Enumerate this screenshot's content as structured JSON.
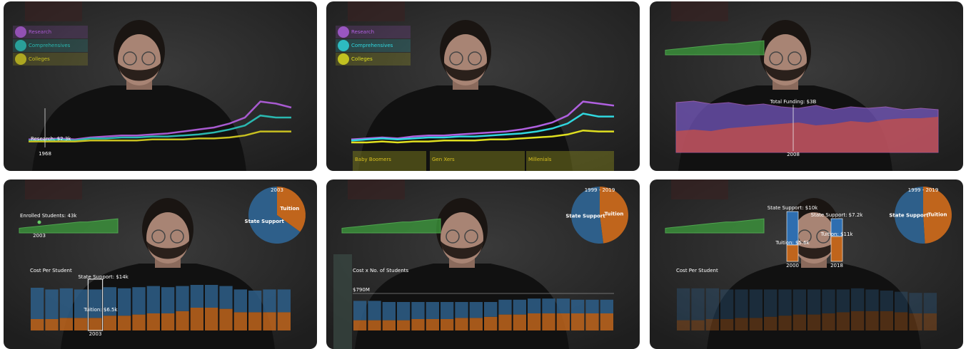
{
  "panels": [
    {
      "legend": [
        {
          "label": "Research",
          "color": "#a85ad0",
          "values": [
            8,
            8,
            9,
            8,
            10,
            11,
            12,
            12,
            13,
            14,
            16,
            18,
            20,
            24,
            30,
            46,
            44,
            40
          ]
        },
        {
          "label": "Comprehensives",
          "color": "#2ab8b0",
          "values": [
            7,
            7,
            8,
            7,
            9,
            9,
            10,
            10,
            11,
            11,
            12,
            13,
            15,
            18,
            22,
            32,
            30,
            30
          ]
        },
        {
          "label": "Colleges",
          "color": "#c8c020",
          "values": [
            6,
            6,
            6,
            6,
            7,
            7,
            7,
            7,
            8,
            8,
            8,
            9,
            9,
            10,
            12,
            16,
            16,
            16
          ]
        }
      ],
      "tooltip": "Research: $2.3k",
      "year": "1968"
    },
    {
      "legend": [
        {
          "label": "Research",
          "color": "#b060e0",
          "values": [
            8,
            9,
            10,
            9,
            11,
            12,
            12,
            13,
            14,
            15,
            16,
            18,
            21,
            25,
            32,
            46,
            44,
            42
          ]
        },
        {
          "label": "Comprehensives",
          "color": "#30d8e0",
          "values": [
            7,
            8,
            9,
            8,
            9,
            10,
            10,
            11,
            11,
            12,
            13,
            14,
            16,
            19,
            24,
            34,
            31,
            31
          ]
        },
        {
          "label": "Colleges",
          "color": "#e0e020",
          "values": [
            5,
            5,
            6,
            5,
            6,
            6,
            7,
            7,
            7,
            8,
            8,
            9,
            10,
            11,
            13,
            17,
            16,
            16
          ]
        }
      ],
      "generations": [
        "Baby Boomers",
        "Gen Xers",
        "Millenials"
      ]
    },
    {
      "enrollment": [
        6,
        7,
        8,
        9,
        10,
        11,
        12,
        13,
        14,
        14,
        15,
        16,
        17,
        18
      ],
      "funding": {
        "total": [
          70,
          72,
          68,
          70,
          66,
          68,
          64,
          62,
          66,
          60,
          64,
          62,
          64,
          60,
          62,
          60
        ],
        "state": [
          30,
          32,
          30,
          34,
          36,
          38,
          40,
          42,
          38,
          40,
          44,
          42,
          46,
          48,
          48,
          50
        ]
      },
      "tooltip": "Total Funding: $3B",
      "year": "2008"
    },
    {
      "enrollment": [
        6,
        7,
        8,
        9,
        10,
        11,
        12,
        13,
        14,
        14,
        15,
        16,
        17,
        18
      ],
      "enrollment_label": "Enrolled Students: 43k",
      "enrollment_year": "2003",
      "pie": {
        "title": "2003",
        "labels": [
          "State Support",
          "Tuition"
        ],
        "values": [
          65,
          35
        ]
      },
      "bars": {
        "title": "Cost Per Student",
        "state": [
          55,
          52,
          52,
          50,
          50,
          50,
          48,
          48,
          48,
          46,
          44,
          40,
          40,
          40,
          40,
          38,
          40,
          40
        ],
        "tuition": [
          20,
          20,
          22,
          22,
          22,
          26,
          26,
          28,
          30,
          30,
          34,
          40,
          40,
          38,
          32,
          32,
          32,
          32
        ]
      },
      "state_label": "State Support: $14k",
      "tuition_label": "Tuition: $6.5k",
      "year": "2003"
    },
    {
      "enrollment": [
        6,
        7,
        8,
        9,
        10,
        11,
        12,
        13,
        14,
        14,
        15,
        16,
        17,
        18
      ],
      "pie": {
        "title": "1999 - 2019",
        "labels": [
          "State Support",
          "Tuition"
        ],
        "values": [
          52,
          48
        ]
      },
      "bars": {
        "title": "Cost x No. of Students",
        "state": [
          34,
          34,
          32,
          32,
          30,
          30,
          30,
          28,
          28,
          26,
          26,
          26,
          26,
          26,
          26,
          24,
          24,
          24
        ],
        "tuition": [
          18,
          18,
          18,
          18,
          20,
          20,
          20,
          22,
          22,
          24,
          28,
          28,
          30,
          30,
          30,
          30,
          30,
          30
        ]
      },
      "total_label": "$790M"
    },
    {
      "enrollment": [
        6,
        7,
        8,
        9,
        10,
        11,
        12,
        13,
        14,
        14,
        15,
        16,
        17,
        18
      ],
      "pie": {
        "title": "1999 - 2019",
        "labels": [
          "State Support",
          "Tuition"
        ],
        "values": [
          51,
          49
        ]
      },
      "bars": {
        "title": "Cost Per Student",
        "state": [
          56,
          56,
          54,
          52,
          50,
          50,
          48,
          46,
          44,
          44,
          42,
          40,
          40,
          38,
          36,
          36,
          36,
          36
        ],
        "tuition": [
          18,
          18,
          20,
          20,
          22,
          22,
          24,
          26,
          28,
          28,
          30,
          32,
          34,
          34,
          34,
          32,
          30,
          30
        ]
      },
      "highlights": [
        {
          "state_label": "State Support: $10k",
          "tuition_label": "Tuition: $5.6k",
          "year": "2000"
        },
        {
          "state_label": "State Support: $7.2k",
          "tuition_label": "Tuition: $11k",
          "year": "2018"
        }
      ]
    }
  ]
}
